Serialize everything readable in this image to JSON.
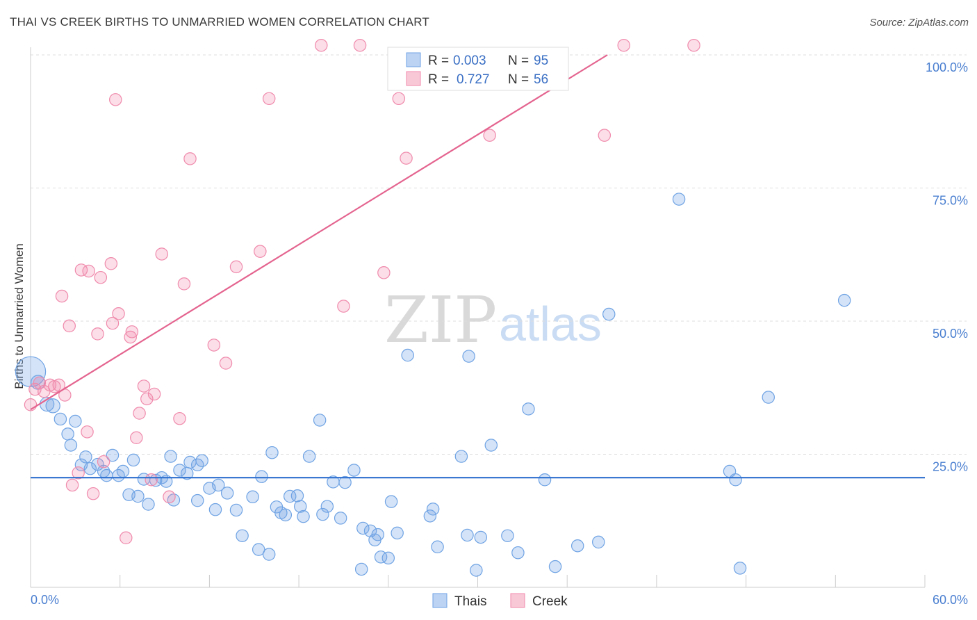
{
  "title": "THAI VS CREEK BIRTHS TO UNMARRIED WOMEN CORRELATION CHART",
  "source": "Source: ZipAtlas.com",
  "watermark": {
    "zip": "ZIP",
    "atlas": "atlas"
  },
  "legend_stats": [
    {
      "r_label": "R =",
      "r_value": "0.003",
      "n_label": "N =",
      "n_value": "95"
    },
    {
      "r_label": "R =",
      "r_value": "0.727",
      "n_label": "N =",
      "n_value": "56"
    }
  ],
  "chart_data": {
    "type": "scatter",
    "title": "THAI VS CREEK BIRTHS TO UNMARRIED WOMEN CORRELATION CHART",
    "xlabel": "",
    "ylabel": "Births to Unmarried Women",
    "xlim": [
      0,
      60
    ],
    "ylim": [
      0,
      100
    ],
    "x_tick_labels": [
      "0.0%",
      "60.0%"
    ],
    "y_ticks": [
      25,
      50,
      75,
      100
    ],
    "y_tick_labels": [
      "25.0%",
      "50.0%",
      "75.0%",
      "100.0%"
    ],
    "grid": true,
    "legend_position": "top-center",
    "colors": {
      "Thais": "#6fa3e4",
      "Creek": "#f08aab",
      "thais_line": "#2e6fcf",
      "creek_line": "#e4648f"
    },
    "series": [
      {
        "name": "Thais",
        "trend": {
          "x": [
            0,
            60
          ],
          "y": [
            20.6,
            20.6
          ]
        },
        "points": [
          [
            0.0,
            40.5,
            30
          ],
          [
            0.5,
            38.5,
            14
          ],
          [
            1.1,
            34.4,
            14
          ],
          [
            1.5,
            34.1,
            14
          ],
          [
            2.0,
            31.6,
            12
          ],
          [
            2.5,
            28.8,
            12
          ],
          [
            2.7,
            26.7,
            12
          ],
          [
            3.0,
            31.2,
            12
          ],
          [
            3.7,
            24.5,
            12
          ],
          [
            3.4,
            23.0,
            12
          ],
          [
            4.0,
            22.3,
            12
          ],
          [
            4.5,
            23.1,
            12
          ],
          [
            4.9,
            21.8,
            12
          ],
          [
            5.1,
            21.0,
            12
          ],
          [
            5.5,
            24.8,
            12
          ],
          [
            5.9,
            21.0,
            12
          ],
          [
            6.2,
            21.8,
            12
          ],
          [
            6.9,
            23.9,
            12
          ],
          [
            6.6,
            17.4,
            12
          ],
          [
            7.2,
            17.1,
            12
          ],
          [
            7.6,
            20.3,
            12
          ],
          [
            7.9,
            15.6,
            12
          ],
          [
            8.4,
            20.1,
            12
          ],
          [
            8.8,
            20.6,
            12
          ],
          [
            9.1,
            19.9,
            12
          ],
          [
            9.4,
            24.6,
            12
          ],
          [
            9.6,
            16.4,
            12
          ],
          [
            10.0,
            22.0,
            12
          ],
          [
            10.5,
            21.4,
            12
          ],
          [
            10.7,
            23.5,
            12
          ],
          [
            11.2,
            23.0,
            12
          ],
          [
            11.5,
            23.8,
            12
          ],
          [
            11.2,
            16.3,
            12
          ],
          [
            12.0,
            18.6,
            12
          ],
          [
            12.6,
            19.2,
            12
          ],
          [
            12.4,
            14.6,
            12
          ],
          [
            13.2,
            17.7,
            12
          ],
          [
            13.8,
            14.5,
            12
          ],
          [
            14.2,
            9.7,
            12
          ],
          [
            14.9,
            17.0,
            12
          ],
          [
            15.3,
            7.1,
            12
          ],
          [
            15.5,
            20.8,
            12
          ],
          [
            16.0,
            6.2,
            12
          ],
          [
            16.2,
            25.3,
            12
          ],
          [
            16.5,
            15.1,
            12
          ],
          [
            16.8,
            14.0,
            12
          ],
          [
            17.1,
            13.6,
            12
          ],
          [
            17.4,
            17.1,
            12
          ],
          [
            17.9,
            17.2,
            12
          ],
          [
            18.1,
            15.2,
            12
          ],
          [
            18.3,
            13.3,
            12
          ],
          [
            18.7,
            24.6,
            12
          ],
          [
            19.4,
            31.4,
            12
          ],
          [
            19.6,
            13.7,
            12
          ],
          [
            19.9,
            15.2,
            12
          ],
          [
            20.3,
            19.8,
            12
          ],
          [
            20.8,
            13.0,
            12
          ],
          [
            21.1,
            19.7,
            12
          ],
          [
            21.7,
            22.0,
            12
          ],
          [
            22.2,
            3.4,
            12
          ],
          [
            22.3,
            11.1,
            12
          ],
          [
            22.8,
            10.6,
            12
          ],
          [
            23.1,
            8.9,
            12
          ],
          [
            23.3,
            9.9,
            12
          ],
          [
            23.5,
            5.7,
            12
          ],
          [
            24.0,
            5.5,
            12
          ],
          [
            24.2,
            16.1,
            12
          ],
          [
            24.6,
            10.2,
            12
          ],
          [
            25.3,
            43.6,
            12
          ],
          [
            26.8,
            13.4,
            12
          ],
          [
            27.0,
            14.7,
            12
          ],
          [
            27.3,
            7.6,
            12
          ],
          [
            28.9,
            24.6,
            12
          ],
          [
            29.3,
            9.8,
            12
          ],
          [
            29.4,
            43.4,
            12
          ],
          [
            29.9,
            3.2,
            12
          ],
          [
            30.2,
            9.4,
            12
          ],
          [
            30.9,
            26.7,
            12
          ],
          [
            32.0,
            9.7,
            12
          ],
          [
            32.7,
            6.5,
            12
          ],
          [
            33.4,
            33.5,
            12
          ],
          [
            34.5,
            20.2,
            12
          ],
          [
            35.2,
            3.9,
            12
          ],
          [
            36.7,
            7.8,
            12
          ],
          [
            38.1,
            8.5,
            12
          ],
          [
            38.8,
            51.3,
            12
          ],
          [
            43.5,
            72.9,
            12
          ],
          [
            46.9,
            21.8,
            12
          ],
          [
            47.3,
            20.2,
            12
          ],
          [
            47.6,
            3.6,
            12
          ],
          [
            49.5,
            35.7,
            12
          ],
          [
            54.6,
            53.9,
            12
          ]
        ]
      },
      {
        "name": "Creek",
        "trend": {
          "x": [
            0,
            38.7
          ],
          "y": [
            33.4,
            100.0
          ]
        },
        "points": [
          [
            0.0,
            34.3,
            12
          ],
          [
            0.3,
            37.2,
            12
          ],
          [
            0.6,
            38.4,
            12
          ],
          [
            0.9,
            36.8,
            12
          ],
          [
            1.3,
            38.0,
            12
          ],
          [
            1.6,
            37.7,
            12
          ],
          [
            1.9,
            38.0,
            12
          ],
          [
            2.3,
            36.1,
            12
          ],
          [
            2.1,
            54.7,
            12
          ],
          [
            2.6,
            49.1,
            12
          ],
          [
            2.8,
            19.2,
            12
          ],
          [
            3.2,
            21.5,
            12
          ],
          [
            3.4,
            59.6,
            12
          ],
          [
            3.8,
            29.2,
            12
          ],
          [
            3.9,
            59.4,
            12
          ],
          [
            4.2,
            17.6,
            12
          ],
          [
            4.5,
            47.6,
            12
          ],
          [
            4.7,
            58.2,
            12
          ],
          [
            4.9,
            23.6,
            12
          ],
          [
            5.5,
            49.6,
            12
          ],
          [
            5.4,
            60.8,
            12
          ],
          [
            5.7,
            91.6,
            12
          ],
          [
            5.9,
            51.4,
            12
          ],
          [
            6.4,
            9.3,
            12
          ],
          [
            6.7,
            47.0,
            12
          ],
          [
            6.8,
            48.0,
            12
          ],
          [
            7.1,
            28.1,
            12
          ],
          [
            7.3,
            32.7,
            12
          ],
          [
            7.6,
            37.8,
            12
          ],
          [
            7.8,
            35.4,
            12
          ],
          [
            8.1,
            20.2,
            12
          ],
          [
            8.3,
            36.3,
            12
          ],
          [
            8.8,
            62.6,
            12
          ],
          [
            9.3,
            17.0,
            12
          ],
          [
            10.0,
            31.7,
            12
          ],
          [
            10.3,
            57.0,
            12
          ],
          [
            10.7,
            80.5,
            12
          ],
          [
            12.3,
            45.5,
            12
          ],
          [
            13.1,
            42.1,
            12
          ],
          [
            13.8,
            60.2,
            12
          ],
          [
            15.4,
            63.1,
            12
          ],
          [
            16.0,
            91.8,
            12
          ],
          [
            19.5,
            101.8,
            12
          ],
          [
            21.0,
            52.8,
            12
          ],
          [
            22.1,
            101.8,
            12
          ],
          [
            23.7,
            59.1,
            12
          ],
          [
            24.7,
            91.8,
            12
          ],
          [
            25.2,
            80.6,
            12
          ],
          [
            30.8,
            84.9,
            12
          ],
          [
            38.5,
            84.9,
            12
          ],
          [
            39.8,
            101.8,
            12
          ],
          [
            44.5,
            101.8,
            12
          ]
        ]
      }
    ]
  },
  "bottom_legend": [
    {
      "label": "Thais"
    },
    {
      "label": "Creek"
    }
  ]
}
